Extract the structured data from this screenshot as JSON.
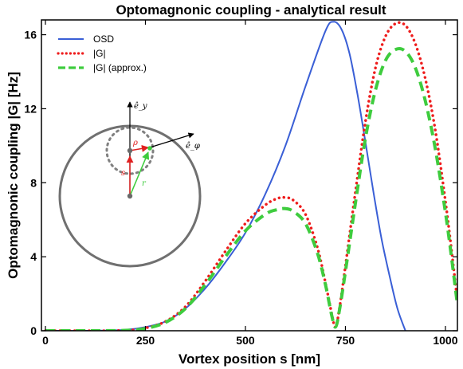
{
  "chart_data": {
    "type": "line",
    "title": "Optomagnonic coupling - analytical result",
    "xlabel": "Vortex position s [nm]",
    "ylabel": "Optomagnonic coupling |G| [Hz]",
    "xlim": [
      -10,
      1030
    ],
    "ylim": [
      0,
      16.8
    ],
    "xticks": [
      "0",
      "250",
      "500",
      "750",
      "1000"
    ],
    "yticks": [
      "0",
      "4",
      "8",
      "12",
      "16"
    ],
    "legend_position": "top-left",
    "grid": false,
    "series": [
      {
        "name": "OSD",
        "color": "#3a5fd6",
        "style": "solid",
        "x": [
          0,
          100,
          200,
          250,
          300,
          350,
          400,
          450,
          500,
          550,
          600,
          650,
          700,
          720,
          740,
          760,
          780,
          800,
          820,
          840,
          860,
          880,
          900
        ],
        "y": [
          0,
          0,
          0.05,
          0.2,
          0.5,
          1.2,
          2.3,
          3.7,
          5.3,
          7.4,
          10.0,
          13.2,
          16.2,
          16.7,
          16.3,
          15.0,
          12.8,
          10.2,
          7.5,
          5.0,
          3.0,
          1.2,
          0
        ]
      },
      {
        "name": "|G|",
        "color": "#ee1c1c",
        "style": "dotted",
        "x": [
          0,
          100,
          200,
          250,
          300,
          350,
          400,
          450,
          500,
          550,
          580,
          600,
          620,
          650,
          680,
          700,
          715,
          725,
          735,
          750,
          775,
          800,
          825,
          850,
          875,
          900,
          925,
          950,
          975,
          1000,
          1015,
          1030
        ],
        "y": [
          0,
          0,
          0.02,
          0.15,
          0.5,
          1.3,
          2.7,
          4.3,
          5.8,
          6.8,
          7.15,
          7.2,
          7.05,
          6.3,
          4.5,
          2.6,
          1.0,
          0.2,
          1.2,
          3.5,
          7.5,
          11.3,
          14.2,
          15.9,
          16.6,
          16.5,
          15.5,
          13.6,
          10.8,
          7.0,
          4.4,
          1.6
        ]
      },
      {
        "name": "|G| (approx.)",
        "color": "#3ecc3e",
        "style": "dashed",
        "x": [
          0,
          100,
          200,
          250,
          300,
          350,
          400,
          450,
          500,
          550,
          580,
          600,
          620,
          650,
          680,
          700,
          715,
          725,
          735,
          750,
          775,
          800,
          825,
          850,
          875,
          900,
          925,
          950,
          975,
          1000,
          1015,
          1030
        ],
        "y": [
          0,
          0,
          0.02,
          0.12,
          0.45,
          1.2,
          2.5,
          4.0,
          5.4,
          6.3,
          6.55,
          6.6,
          6.45,
          5.8,
          4.2,
          2.5,
          0.9,
          0.2,
          1.1,
          3.2,
          6.9,
          10.4,
          13.0,
          14.6,
          15.2,
          15.1,
          14.2,
          12.4,
          9.8,
          6.4,
          4.0,
          1.4
        ]
      }
    ]
  },
  "inset": {
    "labels": {
      "e_y": "ê_y",
      "e_phi": "ê_φ",
      "rho": "ρ",
      "s": "s",
      "r": "r"
    }
  }
}
